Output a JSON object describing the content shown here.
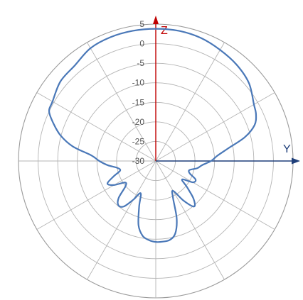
{
  "chart_data": {
    "type": "polar-line",
    "title": "",
    "angular_unit": "degrees",
    "angle_reference": "0° = +Z (up), 90° = +Y (right)",
    "radial_axis": {
      "range": [
        -30,
        5
      ],
      "ticks": [
        5,
        0,
        -5,
        -10,
        -15,
        -20,
        -25,
        -30
      ]
    },
    "angular_grid_step_deg": 30,
    "grid": true,
    "axes": {
      "vertical": {
        "label": "Z",
        "color": "#c00000"
      },
      "horizontal": {
        "label": "Y",
        "color": "#1f3f7a"
      }
    },
    "series": [
      {
        "color": "#4a78b8",
        "theta": [
          0,
          10,
          20,
          30,
          40,
          50,
          60,
          65,
          70,
          75,
          80,
          85,
          90,
          95,
          100,
          105,
          110,
          115,
          120,
          125,
          130,
          135,
          140,
          145,
          150,
          155,
          160,
          165,
          170,
          175,
          180,
          185,
          190,
          195,
          200,
          205,
          210,
          215,
          220,
          225,
          230,
          235,
          240,
          245,
          250,
          255,
          260,
          265,
          270,
          275,
          280,
          285,
          290,
          295,
          300,
          310,
          320,
          330,
          340,
          350,
          360
        ],
        "r_db": [
          3.8,
          3.8,
          3.5,
          2.8,
          2.1,
          1.0,
          -1.1,
          -1.8,
          -3.2,
          -6.5,
          -11.2,
          -14.2,
          -15.9,
          -18.1,
          -19.3,
          -21.1,
          -20.8,
          -18.8,
          -19.1,
          -21.8,
          -19.6,
          -16.4,
          -14.8,
          -17.6,
          -21.2,
          -19.6,
          -14.4,
          -10.8,
          -9.5,
          -9.3,
          -9.3,
          -9.7,
          -10.6,
          -13.0,
          -17.6,
          -20.9,
          -18.6,
          -15.8,
          -15.2,
          -16.6,
          -19.9,
          -20.4,
          -17.7,
          -16.4,
          -18.6,
          -20.6,
          -20.0,
          -17.7,
          -15.6,
          -13.5,
          -8.5,
          -4.9,
          -2.3,
          0.0,
          0.4,
          1.7,
          2.0,
          3.3,
          3.7,
          3.8,
          3.8
        ]
      }
    ]
  }
}
